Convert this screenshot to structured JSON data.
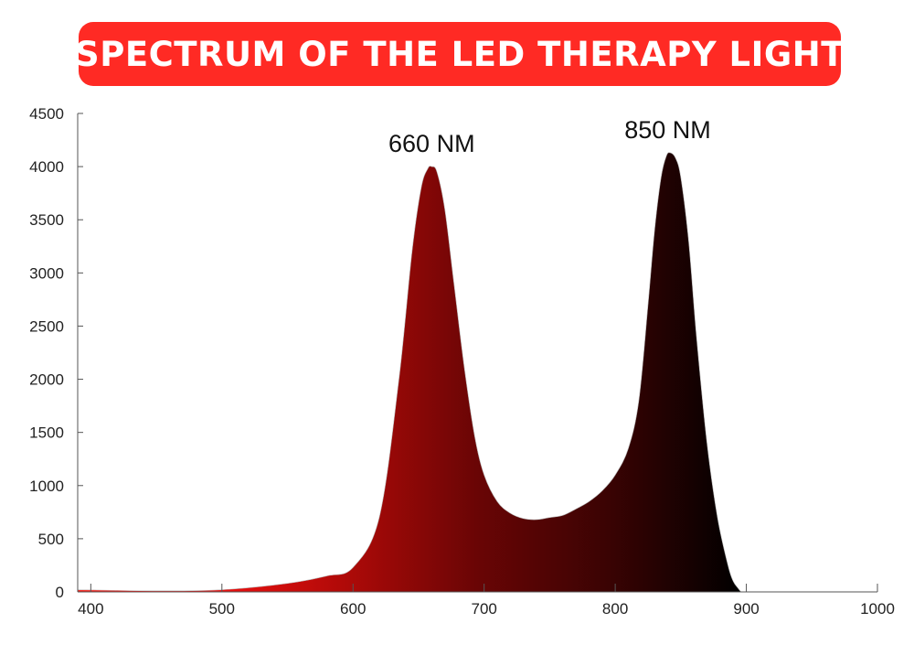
{
  "chart_data": {
    "type": "area",
    "title": "SPECTRUM OF THE LED THERAPY LIGHT",
    "xlabel": "",
    "ylabel": "",
    "xlim": [
      390,
      1000
    ],
    "ylim": [
      0,
      4500
    ],
    "x_ticks": [
      400,
      500,
      600,
      700,
      800,
      900,
      1000
    ],
    "x_tick_labels": [
      "400",
      "500",
      "600",
      "700",
      "800",
      "900",
      "1000"
    ],
    "y_ticks": [
      0,
      500,
      1000,
      1500,
      2000,
      2500,
      3000,
      3500,
      4000,
      4500
    ],
    "y_tick_labels": [
      "0",
      "500",
      "1000",
      "1500",
      "2000",
      "2500",
      "3000",
      "3500",
      "4000",
      "4500"
    ],
    "grid": false,
    "fill_colors": [
      "#ff1a14",
      "#f01010",
      "#b00a08",
      "#6a0505",
      "#3a0303",
      "#000000"
    ],
    "series": [
      {
        "x": [
          390,
          450,
          500,
          550,
          580,
          600,
          620,
          635,
          645,
          652,
          657,
          660,
          664,
          670,
          677,
          685,
          693,
          700,
          710,
          720,
          730,
          740,
          750,
          760,
          770,
          780,
          790,
          800,
          810,
          818,
          825,
          830,
          835,
          839,
          842,
          846,
          850,
          856,
          862,
          870,
          878,
          886,
          890,
          894,
          896
        ],
        "y": [
          20,
          10,
          20,
          80,
          150,
          230,
          700,
          2000,
          3200,
          3800,
          3980,
          4000,
          3950,
          3600,
          2900,
          2100,
          1450,
          1100,
          850,
          740,
          690,
          680,
          700,
          720,
          780,
          850,
          950,
          1100,
          1350,
          1800,
          2700,
          3400,
          3900,
          4100,
          4130,
          4080,
          3900,
          3300,
          2400,
          1400,
          700,
          250,
          100,
          30,
          0
        ]
      }
    ],
    "annotations": [
      {
        "text": "660 NM",
        "x": 660,
        "y": 4000
      },
      {
        "text": "850 NM",
        "x": 840,
        "y": 4130
      }
    ]
  }
}
